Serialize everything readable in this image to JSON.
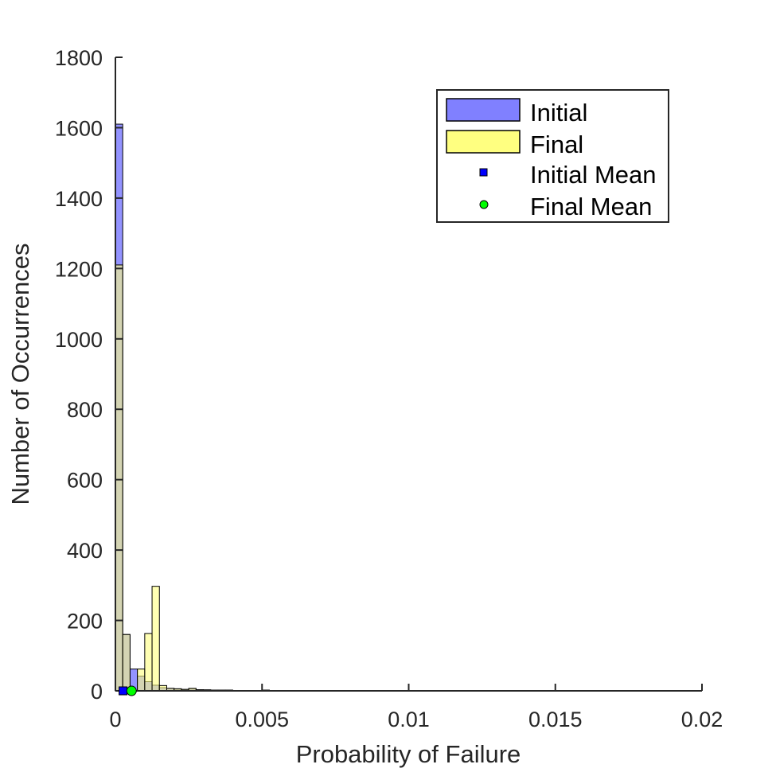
{
  "chart_data": {
    "type": "histogram",
    "title": "",
    "xlabel": "Probability of Failure",
    "ylabel": "Number of Occurrences",
    "xlim": [
      0,
      0.02
    ],
    "ylim": [
      0,
      1800
    ],
    "x_ticks": [
      0,
      0.005,
      0.01,
      0.015,
      0.02
    ],
    "x_tick_labels": [
      "0",
      "0.005",
      "0.01",
      "0.015",
      "0.02"
    ],
    "y_ticks": [
      0,
      200,
      400,
      600,
      800,
      1000,
      1200,
      1400,
      1600,
      1800
    ],
    "y_tick_labels": [
      "0",
      "200",
      "400",
      "600",
      "800",
      "1000",
      "1200",
      "1400",
      "1600",
      "1800"
    ],
    "bin_width": 0.00025,
    "bin_start": 0,
    "series": [
      {
        "name": "Initial",
        "color": "#8080ff",
        "values": [
          1610,
          160,
          62,
          42,
          26,
          16,
          9,
          7,
          5,
          4,
          6,
          3,
          3,
          2,
          2,
          2,
          1,
          1,
          1,
          1,
          2,
          1,
          1,
          0,
          1,
          1,
          0,
          1,
          0,
          0,
          1,
          0,
          1,
          0,
          0,
          1,
          0,
          0,
          1,
          0,
          1,
          0,
          0,
          1,
          0,
          0,
          1,
          0,
          0,
          1,
          0,
          0,
          1,
          0,
          0,
          1,
          0,
          0,
          1,
          0,
          0,
          1,
          0,
          0,
          1,
          0,
          0
        ]
      },
      {
        "name": "Final",
        "color": "#ffff80",
        "values": [
          1210,
          160,
          0,
          62,
          163,
          297,
          15,
          7,
          6,
          4,
          7,
          3,
          2,
          2,
          2,
          2,
          1,
          1,
          1,
          1,
          2,
          1,
          1,
          0,
          1,
          1,
          0,
          1,
          0,
          0,
          1,
          0,
          1,
          0,
          0,
          1,
          0,
          0,
          1,
          0,
          1,
          0,
          0,
          1,
          0,
          0,
          1,
          0,
          0,
          1,
          0,
          0,
          1,
          0,
          0,
          1,
          0,
          0,
          1,
          0,
          0,
          1,
          0,
          0,
          1,
          0,
          0
        ]
      }
    ],
    "markers": [
      {
        "name": "Initial Mean",
        "x": 0.00026,
        "y": 0,
        "shape": "square",
        "color": "#0000ff"
      },
      {
        "name": "Final Mean",
        "x": 0.00055,
        "y": 0,
        "shape": "circle",
        "color": "#00ff00"
      }
    ],
    "legend": {
      "position": "top-right",
      "entries": [
        "Initial",
        "Final",
        "Initial Mean",
        "Final Mean"
      ]
    },
    "grid": false
  }
}
